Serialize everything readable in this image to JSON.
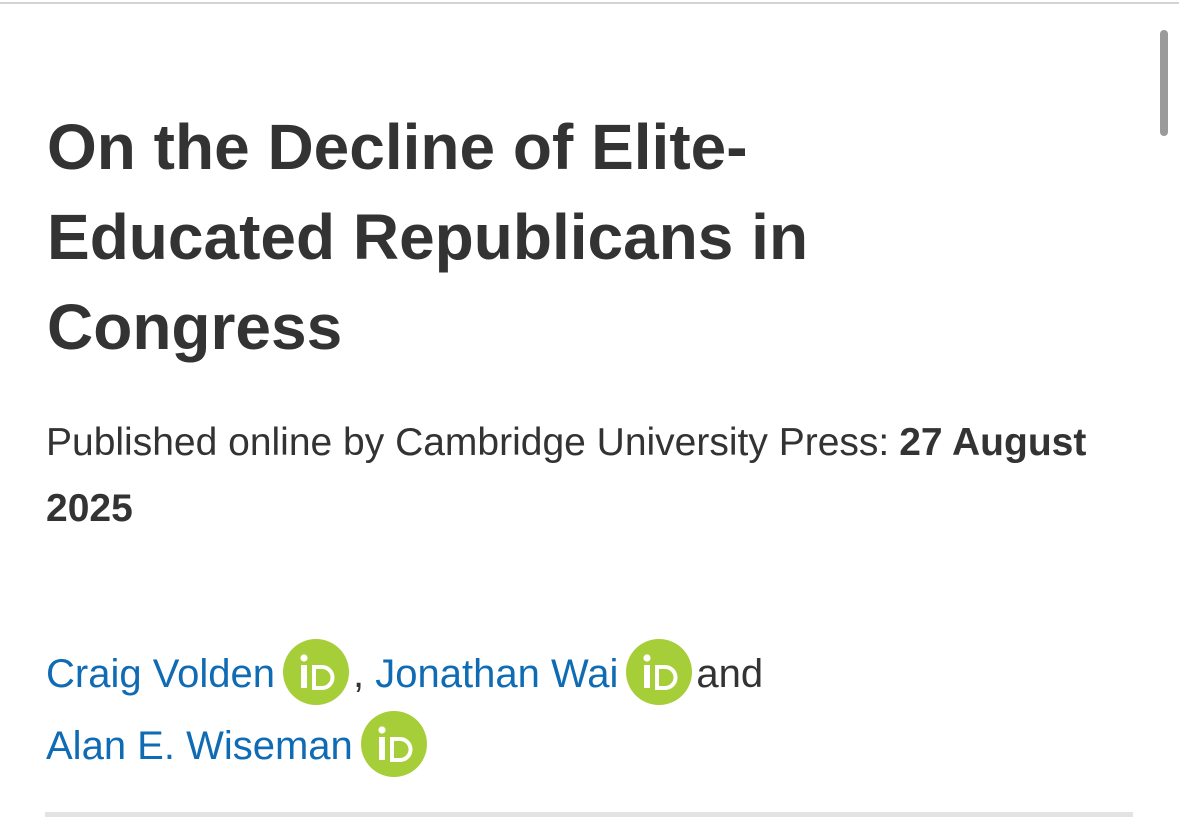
{
  "article": {
    "title": "On the Decline of Elite-Educated Republicans in Congress",
    "published_label": "Published online by Cambridge University Press:",
    "published_date": "27 August 2025",
    "authors": [
      "Craig Volden",
      "Jonathan Wai",
      "Alan E. Wiseman"
    ],
    "separators": [
      ",",
      "and"
    ]
  }
}
